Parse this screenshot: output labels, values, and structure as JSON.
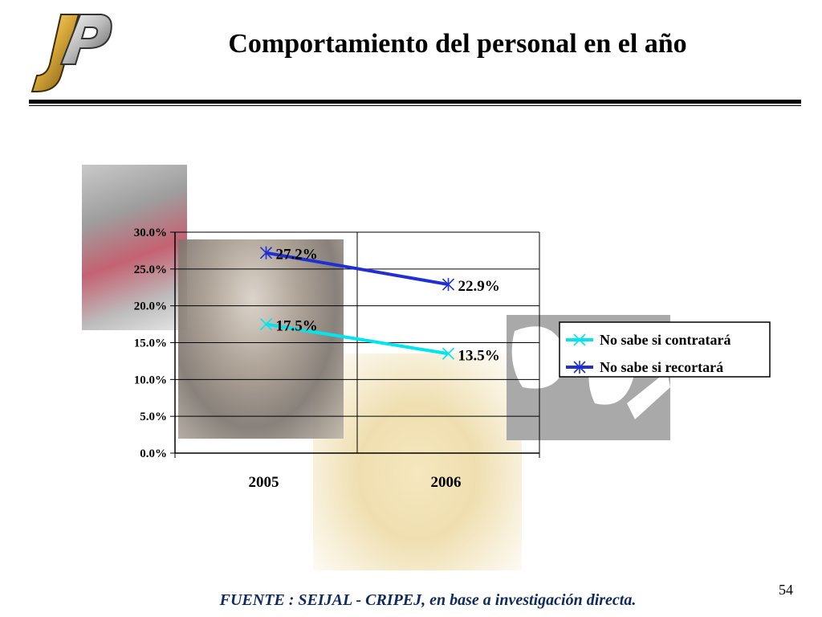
{
  "slide": {
    "title": "Comportamiento del personal en el año",
    "footer": "FUENTE :  SEIJAL - CRIPEJ,  en base a investigación directa.",
    "page_number": "54",
    "logo_text": "JP"
  },
  "colors": {
    "series_contratara": "#00e5ee",
    "series_recortara": "#1f2fd4",
    "footer_text": "#0f2a5f"
  },
  "chart_data": {
    "type": "line",
    "title": "",
    "xlabel": "",
    "ylabel": "",
    "categories": [
      "2005",
      "2006"
    ],
    "ylim": [
      0,
      30
    ],
    "yticks": [
      0,
      5,
      10,
      15,
      20,
      25,
      30
    ],
    "ytick_labels": [
      "0.0%",
      "5.0%",
      "10.0%",
      "15.0%",
      "20.0%",
      "25.0%",
      "30.0%"
    ],
    "grid": true,
    "legend_position": "right",
    "series": [
      {
        "name": "No sabe si contratará",
        "values": [
          17.5,
          13.5
        ],
        "labels": [
          "17.5%",
          "13.5%"
        ],
        "marker": "x",
        "color": "#00e5ee"
      },
      {
        "name": "No sabe si recortará",
        "values": [
          27.2,
          22.9
        ],
        "labels": [
          "27.2%",
          "22.9%"
        ],
        "marker": "asterisk",
        "color": "#1f2fd4"
      }
    ]
  }
}
